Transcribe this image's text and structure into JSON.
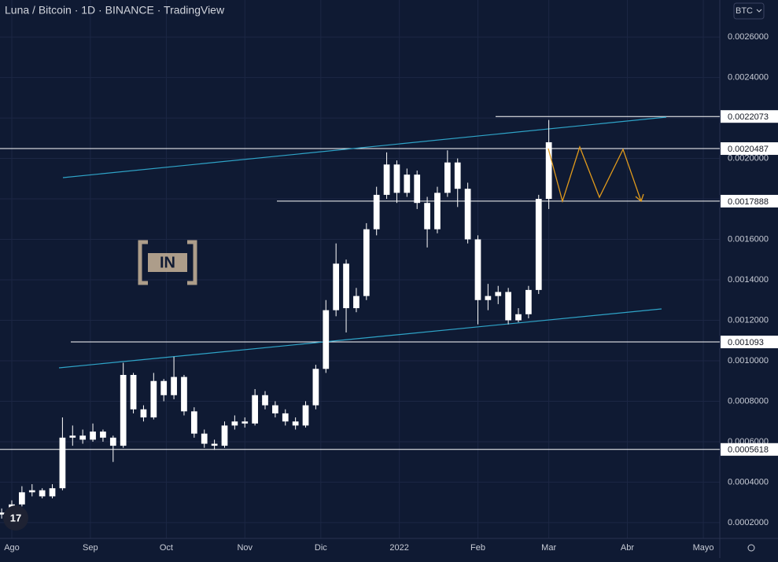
{
  "chart_data": {
    "type": "candlestick",
    "title": "Luna / Bitcoin · 1D · BINANCE · TradingView",
    "currency": "BTC",
    "x": [
      -4,
      0,
      4,
      8,
      12,
      16,
      20,
      24,
      28,
      32,
      36,
      40,
      44,
      48,
      52,
      56,
      60,
      64,
      68,
      72,
      76,
      80,
      84,
      88,
      92,
      96,
      100,
      104,
      108,
      112,
      116,
      120,
      124,
      128,
      132,
      136,
      140,
      144,
      148,
      152,
      156,
      160,
      164,
      168,
      172,
      176,
      180,
      184,
      188,
      192,
      196,
      200,
      204,
      208,
      212
    ],
    "open": [
      0.00024,
      0.00025,
      0.00029,
      0.00035,
      0.00036,
      0.00033,
      0.00037,
      0.00062,
      0.00063,
      0.00061,
      0.00065,
      0.00062,
      0.00058,
      0.00093,
      0.00076,
      0.00072,
      0.0009,
      0.00083,
      0.00092,
      0.00075,
      0.00064,
      0.00059,
      0.00058,
      0.00068,
      0.0007,
      0.00069,
      0.00083,
      0.00078,
      0.00074,
      0.0007,
      0.00068,
      0.00078,
      0.00096,
      0.00125,
      0.00148,
      0.00126,
      0.00132,
      0.00165,
      0.00182,
      0.00197,
      0.00183,
      0.00192,
      0.00178,
      0.00165,
      0.00183,
      0.00198,
      0.00185,
      0.0016,
      0.0013,
      0.00132,
      0.00134,
      0.0012,
      0.00123,
      0.00135,
      0.0018
    ],
    "high": [
      0.00027,
      0.00031,
      0.00038,
      0.00039,
      0.00037,
      0.00039,
      0.00072,
      0.00068,
      0.00066,
      0.00069,
      0.00066,
      0.00063,
      0.00099,
      0.00094,
      0.00078,
      0.00094,
      0.00091,
      0.00102,
      0.00093,
      0.00077,
      0.00066,
      0.00061,
      0.0007,
      0.00073,
      0.00072,
      0.00086,
      0.00085,
      0.0008,
      0.00076,
      0.00072,
      0.0008,
      0.00098,
      0.0013,
      0.00158,
      0.0015,
      0.00136,
      0.00168,
      0.00186,
      0.00203,
      0.00199,
      0.00195,
      0.00194,
      0.00181,
      0.00186,
      0.00204,
      0.002,
      0.00188,
      0.00162,
      0.00138,
      0.00137,
      0.00136,
      0.00126,
      0.00137,
      0.00182,
      0.00219
    ],
    "low": [
      0.00022,
      0.00024,
      0.00028,
      0.00033,
      0.00032,
      0.00032,
      0.00036,
      0.00058,
      0.00059,
      0.0006,
      0.0006,
      0.0005,
      0.00057,
      0.00074,
      0.0007,
      0.00071,
      0.0008,
      0.00081,
      0.00073,
      0.00062,
      0.00057,
      0.00056,
      0.00057,
      0.00066,
      0.00067,
      0.00068,
      0.00076,
      0.00072,
      0.00068,
      0.00066,
      0.00067,
      0.00076,
      0.00094,
      0.00122,
      0.00114,
      0.00124,
      0.0013,
      0.00162,
      0.0018,
      0.00178,
      0.00181,
      0.00175,
      0.00156,
      0.00163,
      0.00181,
      0.00176,
      0.00158,
      0.00118,
      0.00125,
      0.00128,
      0.00118,
      0.00119,
      0.00121,
      0.00133,
      0.00175
    ],
    "close": [
      0.00025,
      0.00029,
      0.00035,
      0.00036,
      0.00033,
      0.00037,
      0.00062,
      0.00063,
      0.00061,
      0.00065,
      0.00062,
      0.00058,
      0.00093,
      0.00076,
      0.00072,
      0.0009,
      0.00083,
      0.00092,
      0.00075,
      0.00064,
      0.00059,
      0.00058,
      0.00068,
      0.0007,
      0.00069,
      0.00083,
      0.00078,
      0.00074,
      0.0007,
      0.00068,
      0.00078,
      0.00096,
      0.00125,
      0.00148,
      0.00126,
      0.00132,
      0.00165,
      0.00182,
      0.00197,
      0.00183,
      0.00192,
      0.00178,
      0.00165,
      0.00183,
      0.00198,
      0.00185,
      0.0016,
      0.0013,
      0.00132,
      0.00134,
      0.0012,
      0.00123,
      0.00135,
      0.0018,
      0.00208
    ],
    "color": "#ffffff",
    "xlim": [
      -4.66,
      279.5
    ],
    "xticks": [
      {
        "value": 0,
        "label": "Ago"
      },
      {
        "value": 31,
        "label": "Sep"
      },
      {
        "value": 61,
        "label": "Oct"
      },
      {
        "value": 92,
        "label": "Nov"
      },
      {
        "value": 122,
        "label": "Dic"
      },
      {
        "value": 153,
        "label": "2022"
      },
      {
        "value": 184,
        "label": "Feb"
      },
      {
        "value": 212,
        "label": "Mar"
      },
      {
        "value": 243,
        "label": "Abr"
      },
      {
        "value": 273,
        "label": "Mayo"
      }
    ],
    "ylim": [
      0.000122,
      0.002783
    ],
    "yticks": [
      {
        "value": 0.0002,
        "label": "0.0002000"
      },
      {
        "value": 0.0004,
        "label": "0.0004000"
      },
      {
        "value": 0.0006,
        "label": "0.0006000"
      },
      {
        "value": 0.0008,
        "label": "0.0008000"
      },
      {
        "value": 0.001,
        "label": "0.0010000"
      },
      {
        "value": 0.0012,
        "label": "0.0012000"
      },
      {
        "value": 0.0014,
        "label": "0.0014000"
      },
      {
        "value": 0.0016,
        "label": "0.0016000"
      },
      {
        "value": 0.0018,
        "label": "0.0018000"
      },
      {
        "value": 0.002,
        "label": "0.0020000"
      },
      {
        "value": 0.0022,
        "label": "0.0022000"
      },
      {
        "value": 0.0024,
        "label": "0.0024000"
      },
      {
        "value": 0.0026,
        "label": "0.0026000"
      }
    ],
    "levels": [
      0.0022073,
      0.0020487,
      0.0017888,
      0.001093,
      0.0005618
    ],
    "grid": true
  }
}
